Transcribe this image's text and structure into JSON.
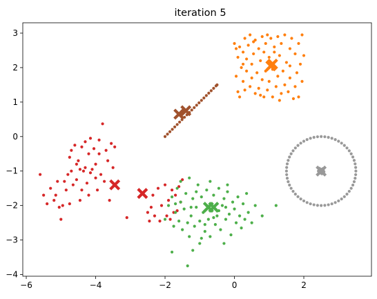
{
  "chart_data": {
    "type": "scatter",
    "title": "iteration 5",
    "xlabel": "",
    "ylabel": "",
    "xlim": [
      -6.1,
      3.95
    ],
    "ylim": [
      -4.05,
      3.3
    ],
    "xticks": [
      -6,
      -4,
      -2,
      0,
      2
    ],
    "yticks": [
      -4,
      -3,
      -2,
      -1,
      0,
      1,
      2,
      3
    ],
    "xtick_labels": [
      "−6",
      "−4",
      "−2",
      "0",
      "2"
    ],
    "ytick_labels": [
      "−4",
      "−3",
      "−2",
      "−1",
      "0",
      "1",
      "2",
      "3"
    ],
    "grid": false,
    "legend": "none",
    "colors": {
      "red": "#d62728",
      "orange": "#ff7f0e",
      "brown": "#a0522d",
      "green": "#4daf4a",
      "gray": "#999999"
    },
    "clusters": [
      {
        "color": "red",
        "points": [
          [
            -5.6,
            -1.1
          ],
          [
            -5.5,
            -1.7
          ],
          [
            -5.4,
            -1.95
          ],
          [
            -5.3,
            -1.5
          ],
          [
            -5.2,
            -1.85
          ],
          [
            -5.15,
            -1.7
          ],
          [
            -5.1,
            -1.3
          ],
          [
            -5.05,
            -2.05
          ],
          [
            -5.0,
            -2.4
          ],
          [
            -4.95,
            -2.0
          ],
          [
            -4.9,
            -1.3
          ],
          [
            -4.85,
            -1.55
          ],
          [
            -4.8,
            -1.1
          ],
          [
            -4.75,
            -0.6
          ],
          [
            -4.75,
            -1.95
          ],
          [
            -4.7,
            -1.0
          ],
          [
            -4.7,
            -0.4
          ],
          [
            -4.65,
            -1.4
          ],
          [
            -4.6,
            -0.25
          ],
          [
            -4.55,
            -0.8
          ],
          [
            -4.55,
            -1.25
          ],
          [
            -4.5,
            -0.7
          ],
          [
            -4.45,
            -0.95
          ],
          [
            -4.45,
            -1.85
          ],
          [
            -4.4,
            -0.3
          ],
          [
            -4.4,
            -1.55
          ],
          [
            -4.35,
            -1.0
          ],
          [
            -4.3,
            -0.15
          ],
          [
            -4.3,
            -0.9
          ],
          [
            -4.25,
            -1.35
          ],
          [
            -4.2,
            -0.5
          ],
          [
            -4.2,
            -1.7
          ],
          [
            -4.15,
            -0.05
          ],
          [
            -4.15,
            -1.05
          ],
          [
            -4.1,
            -0.95
          ],
          [
            -4.05,
            -0.35
          ],
          [
            -4.0,
            -1.2
          ],
          [
            -4.0,
            -0.8
          ],
          [
            -3.95,
            -1.55
          ],
          [
            -3.9,
            -0.5
          ],
          [
            -3.9,
            -0.1
          ],
          [
            -3.85,
            -1.1
          ],
          [
            -3.8,
            0.37
          ],
          [
            -3.75,
            -1.3
          ],
          [
            -3.7,
            -0.4
          ],
          [
            -3.65,
            -0.7
          ],
          [
            -3.6,
            -1.85
          ],
          [
            -3.55,
            -0.2
          ],
          [
            -3.5,
            -0.9
          ],
          [
            -3.45,
            -0.3
          ],
          [
            -3.1,
            -2.35
          ],
          [
            -2.5,
            -2.2
          ],
          [
            -2.45,
            -2.45
          ],
          [
            -2.4,
            -2.05
          ],
          [
            -2.35,
            -1.7
          ],
          [
            -2.3,
            -2.3
          ],
          [
            -2.2,
            -1.5
          ],
          [
            -2.15,
            -2.45
          ],
          [
            -2.1,
            -2.0
          ],
          [
            -2.0,
            -1.4
          ],
          [
            -1.95,
            -2.3
          ],
          [
            -1.9,
            -1.85
          ],
          [
            -1.85,
            -2.4
          ],
          [
            -1.8,
            -1.55
          ],
          [
            -1.75,
            -2.2
          ],
          [
            -1.7,
            -1.7
          ],
          [
            -1.65,
            -2.15
          ],
          [
            -1.6,
            -1.45
          ],
          [
            -1.55,
            -1.9
          ],
          [
            -1.5,
            -1.25
          ]
        ],
        "centroids": [
          [
            -3.45,
            -1.4
          ],
          [
            -2.65,
            -1.65
          ]
        ]
      },
      {
        "color": "orange",
        "points": [
          [
            0.0,
            2.7
          ],
          [
            0.05,
            2.55
          ],
          [
            0.05,
            1.75
          ],
          [
            0.1,
            1.3
          ],
          [
            0.1,
            2.3
          ],
          [
            0.15,
            1.15
          ],
          [
            0.15,
            2.6
          ],
          [
            0.2,
            2.0
          ],
          [
            0.25,
            1.6
          ],
          [
            0.25,
            2.45
          ],
          [
            0.3,
            2.85
          ],
          [
            0.3,
            1.35
          ],
          [
            0.35,
            2.25
          ],
          [
            0.35,
            1.9
          ],
          [
            0.4,
            2.65
          ],
          [
            0.45,
            1.45
          ],
          [
            0.45,
            2.95
          ],
          [
            0.5,
            2.1
          ],
          [
            0.5,
            1.7
          ],
          [
            0.55,
            2.4
          ],
          [
            0.6,
            1.25
          ],
          [
            0.6,
            2.8
          ],
          [
            0.65,
            1.85
          ],
          [
            0.7,
            2.55
          ],
          [
            0.7,
            1.4
          ],
          [
            0.75,
            2.2
          ],
          [
            0.8,
            2.9
          ],
          [
            0.8,
            1.65
          ],
          [
            0.85,
            1.15
          ],
          [
            0.85,
            2.45
          ],
          [
            0.9,
            2.7
          ],
          [
            0.9,
            1.9
          ],
          [
            0.95,
            1.35
          ],
          [
            0.95,
            2.95
          ],
          [
            1.0,
            1.6
          ],
          [
            1.0,
            2.3
          ],
          [
            1.05,
            2.85
          ],
          [
            1.1,
            1.15
          ],
          [
            1.1,
            1.95
          ],
          [
            1.15,
            2.6
          ],
          [
            1.2,
            1.45
          ],
          [
            1.25,
            2.9
          ],
          [
            1.25,
            1.75
          ],
          [
            1.3,
            2.35
          ],
          [
            1.35,
            1.25
          ],
          [
            1.35,
            2.7
          ],
          [
            1.4,
            1.9
          ],
          [
            1.45,
            1.5
          ],
          [
            1.45,
            2.95
          ],
          [
            1.5,
            2.15
          ],
          [
            1.55,
            1.3
          ],
          [
            1.6,
            2.55
          ],
          [
            1.6,
            1.7
          ],
          [
            1.65,
            2.85
          ],
          [
            1.7,
            1.1
          ],
          [
            1.75,
            1.45
          ],
          [
            1.75,
            2.4
          ],
          [
            1.8,
            1.85
          ],
          [
            1.85,
            2.7
          ],
          [
            1.85,
            1.15
          ],
          [
            1.9,
            2.1
          ],
          [
            1.95,
            2.95
          ],
          [
            1.95,
            1.6
          ],
          [
            2.0,
            2.35
          ],
          [
            0.25,
            2.1
          ],
          [
            0.55,
            2.75
          ],
          [
            1.3,
            1.05
          ],
          [
            1.6,
            2.05
          ],
          [
            0.75,
            1.2
          ],
          [
            1.15,
            2.45
          ]
        ],
        "centroids": [
          [
            1.1,
            2.1
          ],
          [
            1.05,
            2.05
          ]
        ]
      },
      {
        "color": "brown",
        "points": [
          [
            -2.0,
            0.0
          ],
          [
            -1.93,
            0.07
          ],
          [
            -1.86,
            0.14
          ],
          [
            -1.79,
            0.21
          ],
          [
            -1.72,
            0.28
          ],
          [
            -1.65,
            0.35
          ],
          [
            -1.58,
            0.42
          ],
          [
            -1.51,
            0.49
          ],
          [
            -1.44,
            0.56
          ],
          [
            -1.37,
            0.63
          ],
          [
            -1.3,
            0.7
          ],
          [
            -1.23,
            0.77
          ],
          [
            -1.16,
            0.84
          ],
          [
            -1.09,
            0.91
          ],
          [
            -1.02,
            0.98
          ],
          [
            -0.95,
            1.05
          ],
          [
            -0.88,
            1.12
          ],
          [
            -0.81,
            1.19
          ],
          [
            -0.74,
            1.26
          ],
          [
            -0.67,
            1.33
          ],
          [
            -0.6,
            1.4
          ],
          [
            -0.53,
            1.47
          ],
          [
            -0.5,
            1.5
          ]
        ],
        "centroids": [
          [
            -1.6,
            0.65
          ],
          [
            -1.4,
            0.75
          ]
        ]
      },
      {
        "color": "green",
        "points": [
          [
            -2.0,
            -2.4
          ],
          [
            -1.9,
            -2.0
          ],
          [
            -1.8,
            -1.75
          ],
          [
            -1.75,
            -2.6
          ],
          [
            -1.7,
            -2.2
          ],
          [
            -1.65,
            -1.5
          ],
          [
            -1.6,
            -2.45
          ],
          [
            -1.55,
            -1.9
          ],
          [
            -1.5,
            -2.7
          ],
          [
            -1.45,
            -2.1
          ],
          [
            -1.4,
            -1.65
          ],
          [
            -1.35,
            -2.5
          ],
          [
            -1.3,
            -2.9
          ],
          [
            -1.3,
            -1.2
          ],
          [
            -1.25,
            -2.3
          ],
          [
            -1.2,
            -1.8
          ],
          [
            -1.2,
            -3.3
          ],
          [
            -1.15,
            -2.6
          ],
          [
            -1.1,
            -2.05
          ],
          [
            -1.05,
            -1.4
          ],
          [
            -1.0,
            -2.45
          ],
          [
            -1.0,
            -3.1
          ],
          [
            -0.95,
            -1.75
          ],
          [
            -0.9,
            -2.2
          ],
          [
            -0.85,
            -2.75
          ],
          [
            -0.8,
            -1.55
          ],
          [
            -0.8,
            -2.0
          ],
          [
            -0.75,
            -2.4
          ],
          [
            -0.7,
            -1.3
          ],
          [
            -0.7,
            -2.9
          ],
          [
            -0.65,
            -2.15
          ],
          [
            -0.6,
            -1.7
          ],
          [
            -0.55,
            -2.55
          ],
          [
            -0.5,
            -1.95
          ],
          [
            -0.5,
            -2.3
          ],
          [
            -0.45,
            -1.5
          ],
          [
            -0.4,
            -2.7
          ],
          [
            -0.35,
            -2.0
          ],
          [
            -0.3,
            -1.8
          ],
          [
            -0.3,
            -3.1
          ],
          [
            -0.25,
            -2.4
          ],
          [
            -0.2,
            -1.6
          ],
          [
            -0.15,
            -2.25
          ],
          [
            -0.1,
            -2.85
          ],
          [
            -0.05,
            -1.9
          ],
          [
            0.0,
            -2.1
          ],
          [
            0.05,
            -2.5
          ],
          [
            0.1,
            -1.75
          ],
          [
            0.15,
            -2.3
          ],
          [
            0.2,
            -2.65
          ],
          [
            0.25,
            -1.95
          ],
          [
            0.3,
            -2.4
          ],
          [
            0.4,
            -2.2
          ],
          [
            0.5,
            -2.5
          ],
          [
            0.6,
            -2.0
          ],
          [
            0.8,
            -2.3
          ],
          [
            1.2,
            -2.0
          ],
          [
            -1.8,
            -3.35
          ],
          [
            -1.35,
            -3.75
          ],
          [
            -0.2,
            -1.4
          ],
          [
            -1.55,
            -1.3
          ],
          [
            -0.95,
            -2.95
          ],
          [
            -0.6,
            -2.35
          ],
          [
            -1.1,
            -1.6
          ],
          [
            -0.25,
            -2.05
          ],
          [
            0.35,
            -1.65
          ],
          [
            -1.7,
            -1.95
          ],
          [
            -0.85,
            -2.55
          ],
          [
            -0.45,
            -2.15
          ],
          [
            -1.25,
            -2.05
          ]
        ],
        "centroids": [
          [
            -0.75,
            -2.05
          ],
          [
            -0.6,
            -2.05
          ]
        ]
      },
      {
        "color": "gray",
        "ring": {
          "center": [
            2.5,
            -1.0
          ],
          "radius": 1.0,
          "count": 60
        },
        "core": [
          [
            2.45,
            -0.92
          ],
          [
            2.5,
            -0.95
          ],
          [
            2.55,
            -0.93
          ],
          [
            2.42,
            -1.0
          ],
          [
            2.5,
            -1.0
          ],
          [
            2.58,
            -1.02
          ],
          [
            2.45,
            -1.06
          ],
          [
            2.52,
            -1.08
          ],
          [
            2.56,
            -0.98
          ],
          [
            2.48,
            -1.04
          ]
        ],
        "centroids": [
          [
            2.5,
            -1.0
          ]
        ]
      }
    ]
  }
}
